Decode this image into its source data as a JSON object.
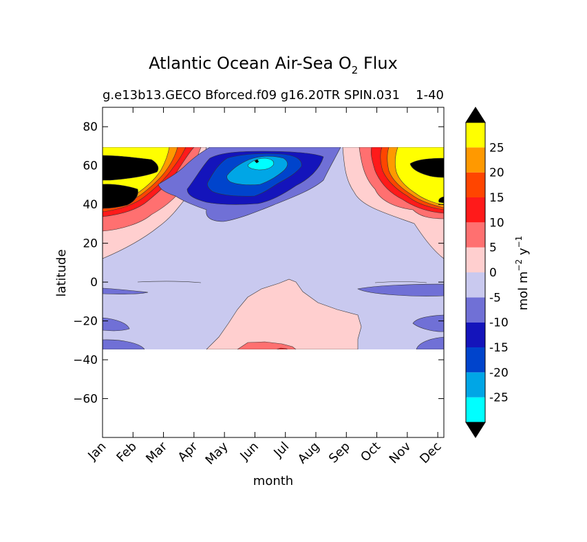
{
  "chart_data": {
    "type": "heatmap",
    "title": "Atlantic Ocean Air-Sea O",
    "title_sub": "2",
    "title_tail": " Flux",
    "subtitle_left": "g.e13b13.GECO Bforced.f09 g16.20TR SPIN.031",
    "subtitle_right": "1-40",
    "xlabel": "month",
    "ylabel": "latitude",
    "x_categories": [
      "Jan",
      "Feb",
      "Mar",
      "Apr",
      "May",
      "Jun",
      "Jul",
      "Aug",
      "Sep",
      "Oct",
      "Nov",
      "Dec"
    ],
    "xlim": [
      0.5,
      11.7
    ],
    "ylim": [
      -80,
      90
    ],
    "y_ticks": [
      80,
      60,
      40,
      20,
      0,
      -20,
      -40,
      -60
    ],
    "y_tick_labels": [
      "80",
      "60",
      "40",
      "20",
      "0",
      "−20",
      "−40",
      "−60"
    ],
    "data_lat_range": [
      -34,
      69
    ],
    "colorbar": {
      "label": "mol m",
      "label_sup1": "−2",
      "label_mid": " y",
      "label_sup2": "−1",
      "bounds": [
        -30,
        -25,
        -20,
        -15,
        -10,
        -5,
        0,
        5,
        10,
        15,
        20,
        25,
        30
      ],
      "tick_values": [
        25,
        20,
        15,
        10,
        5,
        0,
        -5,
        -10,
        -15,
        -20,
        -25
      ],
      "tick_labels": [
        "25",
        "20",
        "15",
        "10",
        "5",
        "0",
        "-5",
        "-10",
        "-15",
        "-20",
        "-25"
      ],
      "colors": [
        "#00ffff",
        "#00a6e6",
        "#0044cc",
        "#1414bb",
        "#7070d6",
        "#c9c9ef",
        "#ffcfcf",
        "#ff7070",
        "#ff1a1a",
        "#ff4500",
        "#ff9900",
        "#ffff00"
      ],
      "under_color": "#000000",
      "over_color": "#000000"
    },
    "regions": [
      {
        "level": "-5 to 0",
        "color": "#c9c9ef",
        "description": "basin-wide background"
      },
      {
        "level": "0 to 5",
        "color": "#ffcfcf",
        "description": "subtropical south Jun-Oct, northern fringe autumn-winter"
      },
      {
        "level": "5 to 10",
        "color": "#ff7070",
        "description": "northern winter outgassing, southern edge Jul"
      },
      {
        "level": "10 to 30+",
        "color": "#ff1a1a",
        "description": "high-latitude winter maximum 35-69N"
      },
      {
        "level": "-10 to -30",
        "color": "#0044cc",
        "description": "spring bloom uptake 45-68N, Apr-Aug, min near Jun 62N"
      }
    ]
  }
}
